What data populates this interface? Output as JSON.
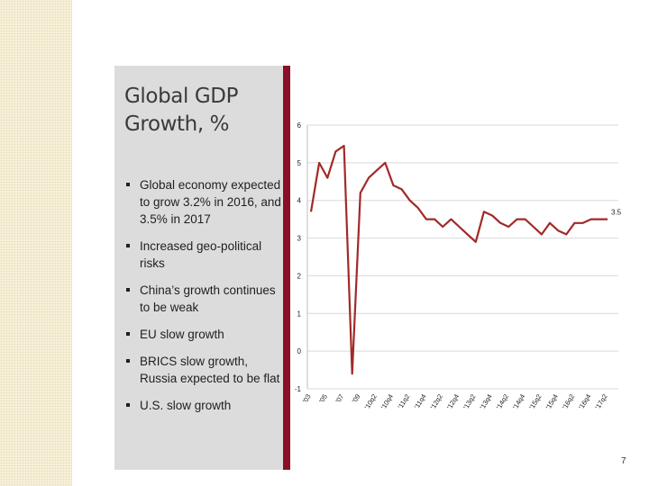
{
  "slide": {
    "title_line1": "Global GDP",
    "title_line2": "Growth, %",
    "bullets": [
      "Global economy expected to grow 3.2% in 2016, and 3.5% in 2017",
      "Increased geo-political risks",
      "China’s growth continues to be weak",
      "EU slow growth",
      "BRICS slow growth, Russia expected to be flat",
      "U.S. slow growth"
    ],
    "page_number": "7"
  },
  "colors": {
    "line": "#a12a28",
    "grid": "#d9d9d9",
    "divider": "#8a1027",
    "panel": "#dcdcdc"
  },
  "chart_data": {
    "type": "line",
    "title": "",
    "xlabel": "",
    "ylabel": "",
    "ylim": [
      -1,
      6
    ],
    "yticks": [
      -1,
      0,
      1,
      2,
      3,
      4,
      5,
      6
    ],
    "grid": true,
    "x_tick_labels": [
      "'03",
      "'05",
      "'07",
      "'09",
      "'10q2",
      "'10q4",
      "'11q2",
      "'11q4",
      "'12q2",
      "'12q4",
      "'13q2",
      "'13q4",
      "'14q2",
      "'14q4",
      "'15q2",
      "'15q4",
      "'16q2",
      "'16q4",
      "'17q2"
    ],
    "end_label": "3.5",
    "series": [
      {
        "name": "Global GDP Growth, %",
        "values": [
          3.7,
          5.0,
          4.6,
          5.3,
          5.45,
          -0.6,
          4.2,
          4.6,
          4.8,
          5.0,
          4.4,
          4.3,
          4.0,
          3.8,
          3.5,
          3.5,
          3.3,
          3.5,
          3.3,
          3.1,
          2.9,
          3.7,
          3.6,
          3.4,
          3.3,
          3.5,
          3.5,
          3.3,
          3.1,
          3.4,
          3.2,
          3.1,
          3.4,
          3.4,
          3.5,
          3.5,
          3.5
        ]
      }
    ]
  }
}
